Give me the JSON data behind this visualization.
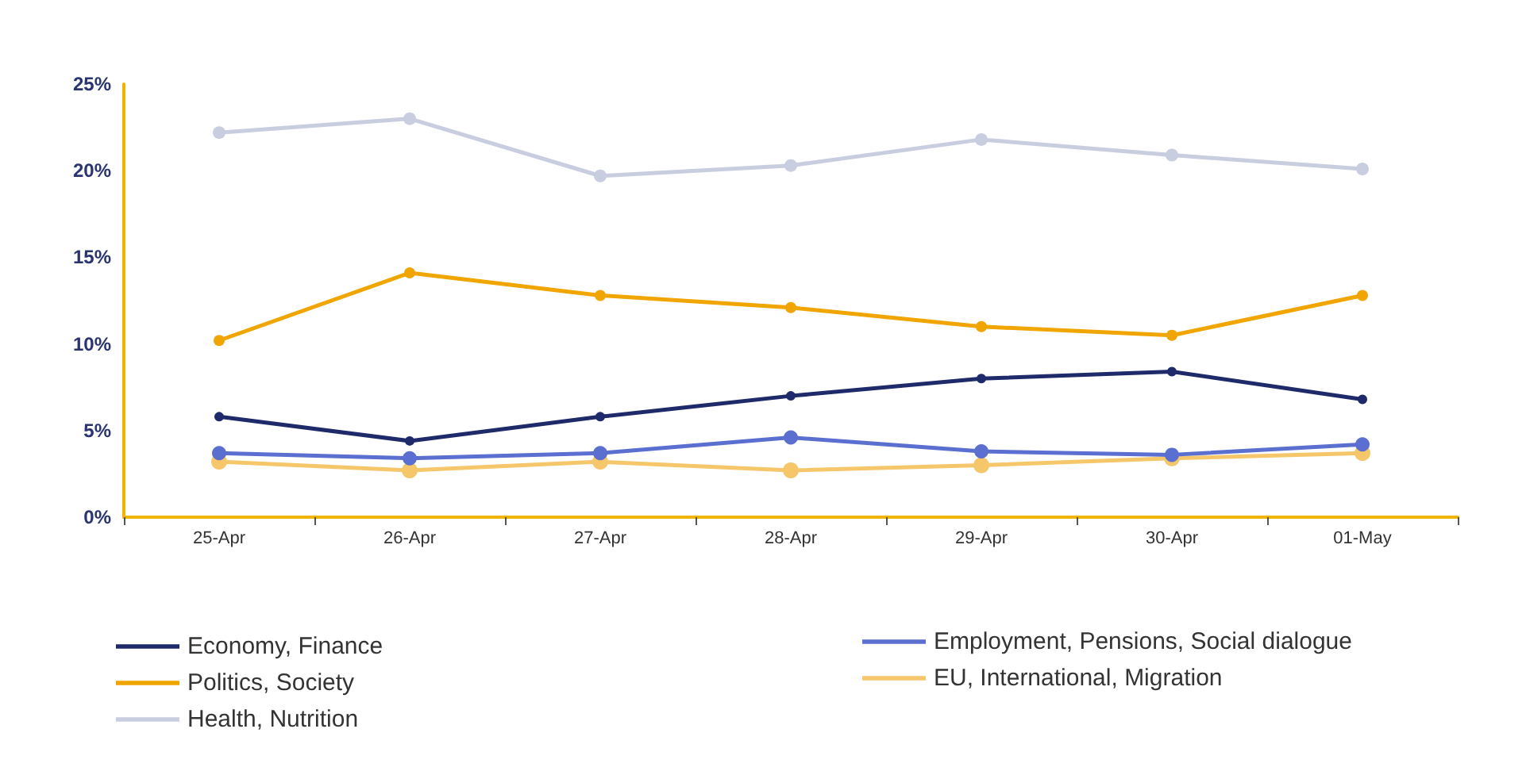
{
  "chart_data": {
    "type": "line",
    "categories": [
      "25-Apr",
      "26-Apr",
      "27-Apr",
      "28-Apr",
      "29-Apr",
      "30-Apr",
      "01-May"
    ],
    "series": [
      {
        "name": "Economy, Finance",
        "color": "#1f2a6b",
        "values": [
          5.8,
          4.4,
          5.8,
          7.0,
          8.0,
          8.4,
          6.8
        ]
      },
      {
        "name": "Politics, Society",
        "color": "#f0a500",
        "values": [
          10.2,
          14.1,
          12.8,
          12.1,
          11.0,
          10.5,
          12.8
        ]
      },
      {
        "name": "Health, Nutrition",
        "color": "#c8cde0",
        "values": [
          22.2,
          23.0,
          19.7,
          20.3,
          21.8,
          20.9,
          20.1
        ]
      },
      {
        "name": "Employment, Pensions, Social dialogue",
        "color": "#5b6fd0",
        "values": [
          3.7,
          3.4,
          3.7,
          4.6,
          3.8,
          3.6,
          4.2
        ]
      },
      {
        "name": "EU, International, Migration",
        "color": "#f5c76a",
        "values": [
          3.2,
          2.7,
          3.2,
          2.7,
          3.0,
          3.4,
          3.7
        ]
      }
    ],
    "ylim": [
      0,
      25
    ],
    "yticks": [
      {
        "value": 0,
        "label": "0%"
      },
      {
        "value": 5,
        "label": "5%"
      },
      {
        "value": 10,
        "label": "10%"
      },
      {
        "value": 15,
        "label": "15%"
      },
      {
        "value": 20,
        "label": "20%"
      },
      {
        "value": 25,
        "label": "25%"
      }
    ],
    "grid": false,
    "legend": "bottom",
    "marker": "circle",
    "line_style": "solid"
  }
}
